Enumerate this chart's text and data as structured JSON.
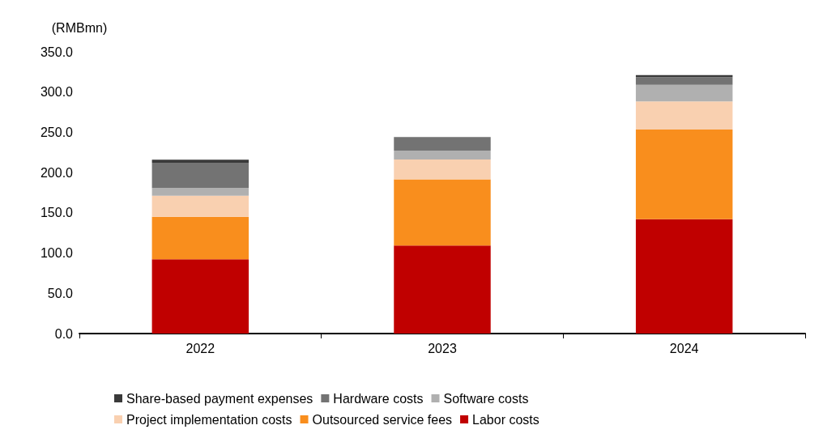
{
  "chart_data": {
    "type": "bar",
    "stacked": true,
    "ylabel": "(RMBmn)",
    "categories": [
      "2022",
      "2023",
      "2024"
    ],
    "series": [
      {
        "name": "Labor costs",
        "color": "#c00000",
        "values": [
          92.3,
          109.3,
          142.0
        ]
      },
      {
        "name": "Outsourced service fees",
        "color": "#f98e1d",
        "values": [
          52.9,
          82.3,
          111.5
        ]
      },
      {
        "name": "Project implementation costs",
        "color": "#f9d0b0",
        "values": [
          26.0,
          24.7,
          34.9
        ]
      },
      {
        "name": "Software costs",
        "color": "#b0b0b0",
        "values": [
          9.6,
          10.9,
          20.5
        ]
      },
      {
        "name": "Hardware costs",
        "color": "#737373",
        "values": [
          31.4,
          17.0,
          9.6
        ]
      },
      {
        "name": "Share-based payment expenses",
        "color": "#3a3a3a",
        "values": [
          3.8,
          0.0,
          2.6
        ]
      }
    ],
    "ylim": [
      0,
      350
    ],
    "yticks": [
      {
        "value": 0,
        "label": "0.0"
      },
      {
        "value": 50,
        "label": "50.0"
      },
      {
        "value": 100,
        "label": "100.0"
      },
      {
        "value": 150,
        "label": "150.0"
      },
      {
        "value": 200,
        "label": "200.0"
      },
      {
        "value": 250,
        "label": "250.0"
      },
      {
        "value": 300,
        "label": "300.0"
      },
      {
        "value": 350,
        "label": "350.0"
      }
    ],
    "grid": false,
    "legend": "bottom"
  }
}
